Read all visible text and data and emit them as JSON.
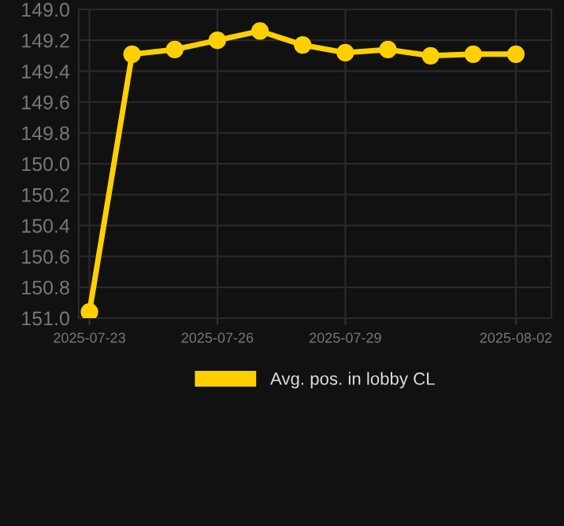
{
  "chart_data": {
    "type": "line",
    "x": [
      "2025-07-23",
      "2025-07-24",
      "2025-07-25",
      "2025-07-26",
      "2025-07-27",
      "2025-07-28",
      "2025-07-29",
      "2025-07-30",
      "2025-07-31",
      "2025-08-01",
      "2025-08-02"
    ],
    "series": [
      {
        "name": "Avg. pos. in lobby CL",
        "color": "#ffd000",
        "values": [
          150.96,
          149.29,
          149.26,
          149.2,
          149.14,
          149.23,
          149.28,
          149.26,
          149.3,
          149.29,
          149.29
        ]
      }
    ],
    "ylim": [
      151.0,
      149.0
    ],
    "yticks": [
      {
        "value": 149.0,
        "label": "149.0"
      },
      {
        "value": 149.2,
        "label": "149.2"
      },
      {
        "value": 149.4,
        "label": "149.4"
      },
      {
        "value": 149.6,
        "label": "149.6"
      },
      {
        "value": 149.8,
        "label": "149.8"
      },
      {
        "value": 150.0,
        "label": "150.0"
      },
      {
        "value": 150.2,
        "label": "150.2"
      },
      {
        "value": 150.4,
        "label": "150.4"
      },
      {
        "value": 150.6,
        "label": "150.6"
      },
      {
        "value": 150.8,
        "label": "150.8"
      },
      {
        "value": 151.0,
        "label": "151.0"
      }
    ],
    "xlim": [
      "2025-07-22T18:00",
      "2025-08-02T20:00"
    ],
    "xticks": [
      {
        "value": "2025-07-23",
        "label": "2025-07-23"
      },
      {
        "value": "2025-07-26",
        "label": "2025-07-26"
      },
      {
        "value": "2025-07-29",
        "label": "2025-07-29"
      },
      {
        "value": "2025-08-02",
        "label": "2025-08-02"
      }
    ],
    "grid": true,
    "legend": "bottom",
    "marker": "circle",
    "line_style": "solid"
  }
}
